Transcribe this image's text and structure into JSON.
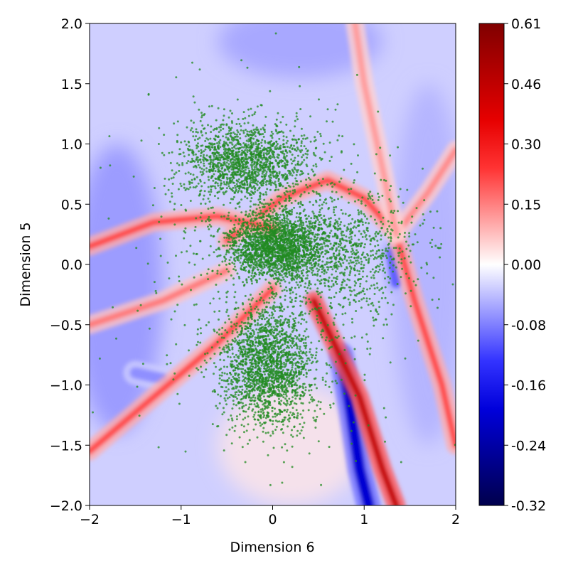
{
  "chart_data": {
    "type": "heatmap",
    "title": "",
    "xlabel": "Dimension 6",
    "ylabel": "Dimension 5",
    "xlim": [
      -2,
      2
    ],
    "ylim": [
      -2,
      2
    ],
    "x_ticks": [
      -2,
      -1,
      0,
      1,
      2
    ],
    "x_tick_labels": [
      "−2",
      "−1",
      "0",
      "1",
      "2"
    ],
    "y_ticks": [
      -2.0,
      -1.5,
      -1.0,
      -0.5,
      0.0,
      0.5,
      1.0,
      1.5,
      2.0
    ],
    "y_tick_labels": [
      "−2.0",
      "−1.5",
      "−1.0",
      "−0.5",
      "0.0",
      "0.5",
      "1.0",
      "1.5",
      "2.0"
    ],
    "grid": false,
    "colormap": "seismic",
    "colormap_colors": [
      "#00004c",
      "#0000ff",
      "#ffffff",
      "#ff0000",
      "#800000"
    ],
    "colorbar": {
      "min": -0.32,
      "max": 0.61,
      "center": 0.0,
      "ticks": [
        -0.32,
        -0.24,
        -0.16,
        -0.08,
        0.0,
        0.15,
        0.3,
        0.46,
        0.61
      ],
      "tick_labels": [
        "-0.32",
        "-0.24",
        "-0.16",
        "-0.08",
        "0.00",
        "0.15",
        "0.30",
        "0.46",
        "0.61"
      ]
    },
    "background_value": -0.03,
    "ridges": [
      {
        "value": 0.45,
        "points": [
          [
            0.45,
            -0.3
          ],
          [
            0.95,
            -1.1
          ],
          [
            1.2,
            -1.7
          ],
          [
            1.35,
            -2.0
          ]
        ]
      },
      {
        "value": 0.22,
        "points": [
          [
            -0.5,
            0.2
          ],
          [
            0.1,
            0.55
          ],
          [
            0.6,
            0.7
          ],
          [
            1.0,
            0.55
          ],
          [
            1.35,
            0.25
          ],
          [
            1.55,
            -0.3
          ],
          [
            1.85,
            -1.0
          ],
          [
            2.0,
            -1.5
          ]
        ]
      },
      {
        "value": 0.22,
        "points": [
          [
            -2.0,
            0.15
          ],
          [
            -1.3,
            0.35
          ],
          [
            -0.6,
            0.4
          ],
          [
            0.0,
            0.3
          ]
        ]
      },
      {
        "value": 0.22,
        "points": [
          [
            -2.0,
            -1.55
          ],
          [
            -1.3,
            -1.1
          ],
          [
            -0.6,
            -0.65
          ],
          [
            0.0,
            -0.2
          ]
        ]
      },
      {
        "value": 0.16,
        "points": [
          [
            -2.0,
            -0.5
          ],
          [
            -1.2,
            -0.3
          ],
          [
            -0.5,
            -0.05
          ]
        ]
      },
      {
        "value": 0.14,
        "points": [
          [
            1.35,
            0.25
          ],
          [
            1.7,
            0.6
          ],
          [
            2.0,
            0.95
          ]
        ]
      },
      {
        "value": 0.12,
        "points": [
          [
            0.9,
            2.0
          ],
          [
            1.0,
            1.5
          ],
          [
            1.2,
            0.8
          ],
          [
            1.35,
            0.25
          ]
        ]
      }
    ],
    "troughs": [
      {
        "value": -0.2,
        "points": [
          [
            0.75,
            -0.75
          ],
          [
            0.85,
            -1.2
          ],
          [
            0.95,
            -1.7
          ],
          [
            1.05,
            -2.0
          ]
        ]
      },
      {
        "value": -0.1,
        "points": [
          [
            1.3,
            0.1
          ],
          [
            1.35,
            -0.15
          ]
        ]
      },
      {
        "value": -0.07,
        "points": [
          [
            -1.5,
            -0.9
          ],
          [
            -1.2,
            -0.95
          ]
        ]
      }
    ],
    "scatter": {
      "marker_color": "#228b22",
      "n_points": 7000,
      "description_clusters": [
        {
          "center": [
            -0.3,
            0.85
          ],
          "spread": [
            0.65,
            0.3
          ],
          "weight": 0.22
        },
        {
          "center": [
            0.05,
            0.15
          ],
          "spread": [
            0.5,
            0.25
          ],
          "weight": 0.3
        },
        {
          "center": [
            -0.05,
            -0.85
          ],
          "spread": [
            0.45,
            0.45
          ],
          "weight": 0.28
        },
        {
          "center": [
            0.8,
            0.1
          ],
          "spread": [
            0.7,
            0.5
          ],
          "weight": 0.12
        },
        {
          "center": [
            0.0,
            0.0
          ],
          "spread": [
            1.4,
            1.4
          ],
          "weight": 0.08
        }
      ]
    }
  }
}
